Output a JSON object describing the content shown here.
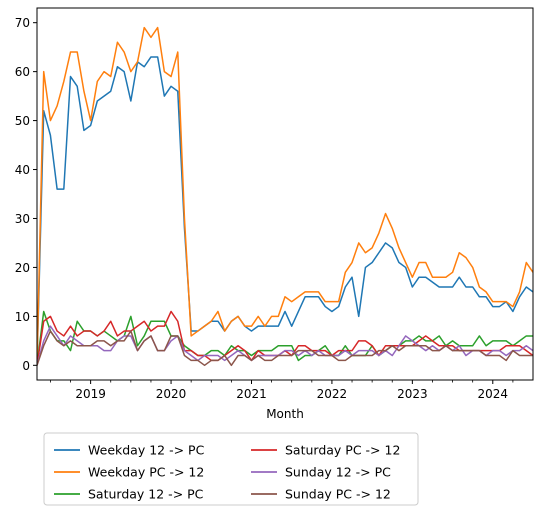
{
  "chart_data": {
    "type": "line",
    "title": "",
    "xlabel": "Month",
    "ylabel": "",
    "x_start": "2018-05",
    "x_end": "2024-07",
    "xlim": [
      "2018-05",
      "2024-07"
    ],
    "ylim": [
      -3,
      73
    ],
    "x_ticks": [
      {
        "date": "2019-01",
        "label": "2019"
      },
      {
        "date": "2020-01",
        "label": "2020"
      },
      {
        "date": "2021-01",
        "label": "2021"
      },
      {
        "date": "2022-01",
        "label": "2022"
      },
      {
        "date": "2023-01",
        "label": "2023"
      },
      {
        "date": "2024-01",
        "label": "2024"
      }
    ],
    "y_ticks": [
      0,
      10,
      20,
      30,
      40,
      50,
      60,
      70
    ],
    "grid": false,
    "legend_position": "below",
    "series": [
      {
        "name": "Weekday 12 -> PC",
        "color": "#1f77b4",
        "values": [
          0,
          52,
          47,
          36,
          36,
          59,
          57,
          48,
          49,
          54,
          55,
          56,
          61,
          60,
          54,
          62,
          61,
          63,
          63,
          55,
          57,
          56,
          28,
          7,
          7,
          8,
          9,
          9,
          7,
          9,
          10,
          8,
          7,
          8,
          8,
          8,
          8,
          11,
          8,
          11,
          14,
          14,
          14,
          12,
          11,
          12,
          16,
          18,
          10,
          20,
          21,
          23,
          25,
          24,
          21,
          20,
          16,
          18,
          18,
          17,
          16,
          16,
          16,
          18,
          16,
          16,
          14,
          14,
          12,
          12,
          13,
          11,
          14,
          16,
          15
        ]
      },
      {
        "name": "Weekday PC -> 12",
        "color": "#ff7f0e",
        "values": [
          0,
          60,
          50,
          53,
          58,
          64,
          64,
          56,
          50,
          58,
          60,
          59,
          66,
          64,
          60,
          62,
          69,
          67,
          69,
          60,
          59,
          64,
          30,
          6,
          7,
          8,
          9,
          11,
          7,
          9,
          10,
          8,
          8,
          10,
          8,
          10,
          10,
          14,
          13,
          14,
          15,
          15,
          15,
          13,
          13,
          13,
          19,
          21,
          25,
          23,
          24,
          27,
          31,
          28,
          24,
          21,
          18,
          21,
          21,
          18,
          18,
          18,
          19,
          23,
          22,
          20,
          16,
          15,
          13,
          13,
          13,
          12,
          15,
          21,
          19
        ]
      },
      {
        "name": "Saturday 12 -> PC",
        "color": "#2ca02c",
        "values": [
          0,
          11,
          7,
          5,
          5,
          3,
          9,
          7,
          7,
          6,
          7,
          6,
          5,
          6,
          10,
          4,
          6,
          9,
          9,
          9,
          6,
          6,
          4,
          3,
          2,
          2,
          3,
          3,
          2,
          4,
          3,
          3,
          2,
          3,
          3,
          3,
          4,
          4,
          4,
          1,
          2,
          2,
          3,
          4,
          2,
          2,
          4,
          2,
          2,
          2,
          4,
          2,
          3,
          4,
          4,
          5,
          5,
          6,
          5,
          5,
          6,
          4,
          5,
          4,
          4,
          4,
          6,
          4,
          5,
          5,
          5,
          4,
          5,
          6,
          6
        ]
      },
      {
        "name": "Saturday PC -> 12",
        "color": "#d62728",
        "values": [
          0,
          9,
          10,
          7,
          6,
          8,
          6,
          7,
          7,
          6,
          7,
          9,
          6,
          7,
          7,
          8,
          9,
          7,
          8,
          8,
          11,
          9,
          3,
          3,
          2,
          2,
          1,
          1,
          2,
          3,
          4,
          3,
          1,
          3,
          2,
          2,
          2,
          3,
          2,
          4,
          4,
          3,
          3,
          3,
          2,
          3,
          3,
          3,
          5,
          5,
          4,
          2,
          4,
          4,
          4,
          4,
          4,
          5,
          6,
          5,
          4,
          4,
          4,
          3,
          3,
          3,
          3,
          3,
          3,
          3,
          4,
          4,
          4,
          3,
          2
        ]
      },
      {
        "name": "Sunday 12 -> PC",
        "color": "#9467bd",
        "values": [
          0,
          5,
          8,
          6,
          4,
          6,
          5,
          4,
          4,
          4,
          3,
          3,
          5,
          6,
          6,
          3,
          5,
          6,
          3,
          3,
          5,
          6,
          3,
          2,
          1,
          2,
          2,
          2,
          1,
          2,
          3,
          2,
          1,
          2,
          2,
          2,
          2,
          3,
          3,
          2,
          3,
          2,
          3,
          2,
          2,
          2,
          3,
          2,
          3,
          3,
          3,
          2,
          3,
          2,
          4,
          6,
          5,
          4,
          3,
          4,
          3,
          4,
          3,
          4,
          2,
          3,
          3,
          2,
          3,
          3,
          2,
          3,
          3,
          4,
          3
        ]
      },
      {
        "name": "Sunday PC -> 12",
        "color": "#8c564b",
        "values": [
          0,
          4,
          7,
          5,
          4,
          5,
          4,
          4,
          4,
          5,
          5,
          4,
          5,
          5,
          7,
          3,
          5,
          6,
          3,
          3,
          6,
          6,
          2,
          1,
          1,
          0,
          1,
          1,
          2,
          0,
          2,
          2,
          1,
          2,
          1,
          1,
          2,
          2,
          2,
          3,
          3,
          3,
          2,
          2,
          2,
          1,
          1,
          2,
          2,
          2,
          2,
          3,
          3,
          4,
          3,
          4,
          4,
          4,
          4,
          3,
          3,
          4,
          3,
          3,
          3,
          3,
          3,
          2,
          2,
          2,
          1,
          3,
          2,
          2,
          2
        ]
      }
    ]
  }
}
